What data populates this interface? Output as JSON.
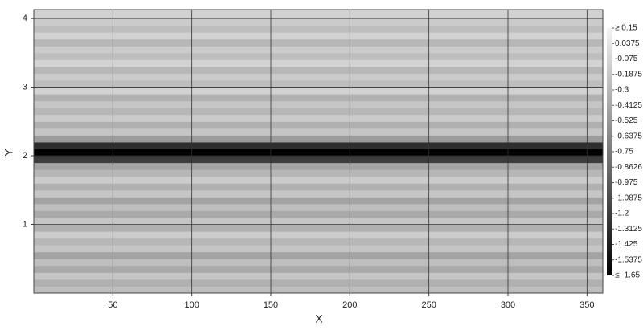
{
  "chart_data": {
    "type": "heatmap",
    "x_label": "X",
    "y_label": "Y",
    "xlim": [
      0,
      360
    ],
    "xticks": [
      50,
      100,
      150,
      200,
      250,
      300,
      350
    ],
    "ylim": [
      0,
      4.13
    ],
    "yticks": [
      1,
      2,
      3,
      4
    ],
    "grid": true,
    "y_edges": [
      0,
      0.1,
      0.2,
      0.3,
      0.4,
      0.5,
      0.6,
      0.7,
      0.8,
      0.9,
      1.0,
      1.1,
      1.2,
      1.3,
      1.4,
      1.5,
      1.6,
      1.7,
      1.8,
      1.9,
      2.0,
      2.1,
      2.2,
      2.3,
      2.4,
      2.5,
      2.6,
      2.7,
      2.8,
      2.9,
      3.0,
      3.1,
      3.2,
      3.3,
      3.4,
      3.5,
      3.6,
      3.7,
      3.8,
      3.9,
      4.0,
      4.13
    ],
    "values": [
      -0.25,
      -0.35,
      -0.2,
      -0.4,
      -0.25,
      -0.45,
      -0.2,
      -0.3,
      -0.15,
      -0.35,
      -0.2,
      -0.4,
      -0.25,
      -0.45,
      -0.2,
      -0.35,
      -0.15,
      -0.3,
      -0.45,
      -1.2,
      -1.65,
      -1.3,
      -0.5,
      -0.2,
      -0.35,
      -0.15,
      -0.3,
      -0.2,
      -0.35,
      -0.1,
      -0.25,
      -0.15,
      -0.3,
      -0.1,
      -0.25,
      -0.15,
      -0.3,
      -0.1,
      -0.25,
      -0.15,
      -0.1
    ],
    "colorbar": {
      "zlim": [
        -1.65,
        0.15
      ],
      "colors": [
        "#000000",
        "#f4f4f4"
      ],
      "ticks": [
        {
          "value": 0.15,
          "label": "≥ 0.15"
        },
        0.0375,
        -0.075,
        -0.1875,
        -0.3,
        -0.4125,
        -0.525,
        -0.6375,
        -0.75,
        -0.8626,
        -0.975,
        -1.0875,
        -1.2,
        -1.3125,
        -1.425,
        -1.5375,
        {
          "value": -1.65,
          "label": "≤ -1.65"
        }
      ]
    }
  }
}
